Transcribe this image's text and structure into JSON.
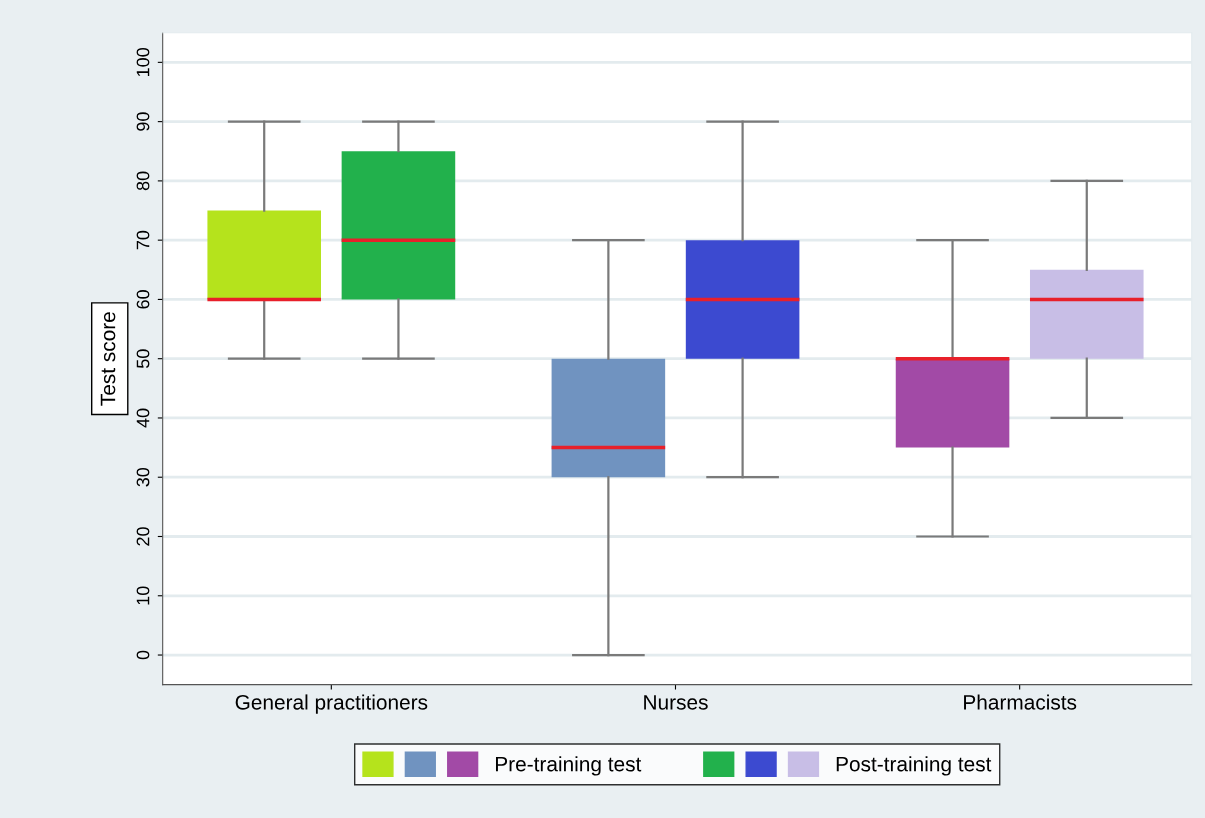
{
  "chart_data": {
    "type": "box",
    "ylabel": "Test score",
    "categories": [
      "General practitioners",
      "Nurses",
      "Pharmacists"
    ],
    "ylim": [
      -5,
      105
    ],
    "yticks": [
      0,
      10,
      20,
      30,
      40,
      50,
      60,
      70,
      80,
      90,
      100
    ],
    "grid": "y",
    "legend": "bottom",
    "series": [
      {
        "name": "Pre-training test",
        "colors": [
          "#b5e31c",
          "#7093c0",
          "#a24aa6"
        ],
        "boxes": [
          {
            "low": 50,
            "q1": 60,
            "median": 60,
            "q3": 75,
            "high": 90
          },
          {
            "low": 0,
            "q1": 30,
            "median": 35,
            "q3": 50,
            "high": 70
          },
          {
            "low": 20,
            "q1": 35,
            "median": 50,
            "q3": 50,
            "high": 70
          }
        ]
      },
      {
        "name": "Post-training test",
        "colors": [
          "#22b14c",
          "#3c4ad0",
          "#c8bee6"
        ],
        "boxes": [
          {
            "low": 50,
            "q1": 60,
            "median": 70,
            "q3": 85,
            "high": 90
          },
          {
            "low": 30,
            "q1": 50,
            "median": 60,
            "q3": 70,
            "high": 90
          },
          {
            "low": 40,
            "q1": 50,
            "median": 60,
            "q3": 65,
            "high": 80
          }
        ]
      }
    ]
  }
}
